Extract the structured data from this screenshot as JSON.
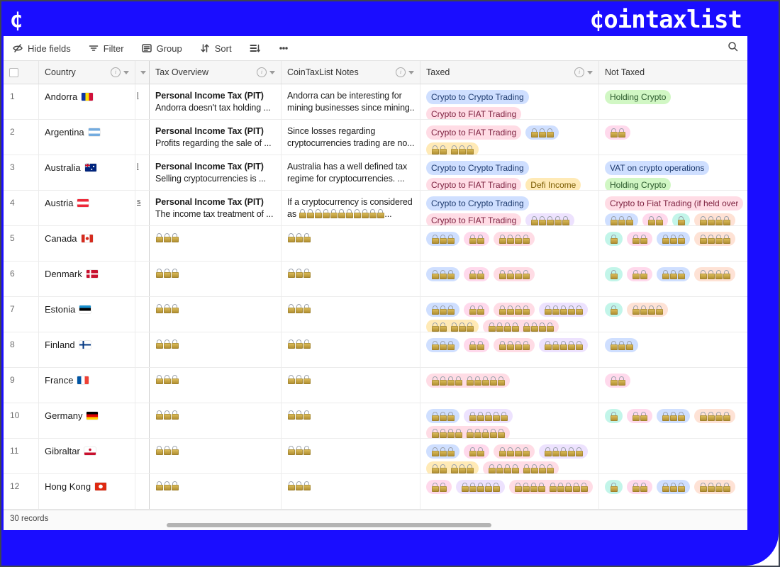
{
  "brand": {
    "logo_glyph": "¢",
    "wordmark": "¢ointaxlist"
  },
  "toolbar": {
    "items": [
      {
        "id": "hide-fields",
        "label": "Hide fields",
        "icon": "eye-slash-icon"
      },
      {
        "id": "filter",
        "label": "Filter",
        "icon": "funnel-icon"
      },
      {
        "id": "group",
        "label": "Group",
        "icon": "grouped-list-icon"
      },
      {
        "id": "sort",
        "label": "Sort",
        "icon": "sort-arrows-icon"
      },
      {
        "id": "row-height",
        "label": "",
        "icon": "row-height-icon"
      },
      {
        "id": "more",
        "label": "",
        "icon": "ellipsis-icon"
      }
    ],
    "search_icon": "magnifier-icon"
  },
  "colors": {
    "frame_blue": "#1a0dff",
    "pill_bg": {
      "blue": "#cfdfff",
      "red": "#ffdce5",
      "pink": "#ffd9ec",
      "green": "#d1f7c4",
      "yellow": "#ffeab6",
      "purple": "#ede2fe",
      "teal": "#c2f5e9",
      "orange": "#fee2d5"
    },
    "pill_text": {
      "blue": "#1d3a6e",
      "red": "#7e2240",
      "pink": "#8a2f5c",
      "green": "#2c5b2d",
      "yellow": "#7a5b00",
      "purple": "#5a2f8f",
      "teal": "#0d6a5f",
      "orange": "#8a3e1c"
    }
  },
  "table": {
    "columns": [
      {
        "key": "country",
        "label": "Country",
        "has_info": true,
        "has_caret": true
      },
      {
        "key": "hidden",
        "label": "",
        "has_info": false,
        "has_caret": true
      },
      {
        "key": "tax_overview",
        "label": "Tax Overview",
        "has_info": true,
        "has_caret": true
      },
      {
        "key": "notes",
        "label": "CoinTaxList Notes",
        "has_info": true,
        "has_caret": true
      },
      {
        "key": "taxed",
        "label": "Taxed",
        "has_info": true,
        "has_caret": true
      },
      {
        "key": "not_taxed",
        "label": "Not Taxed",
        "has_info": false,
        "has_caret": false
      }
    ],
    "rows": [
      {
        "num": "1",
        "country": "Andorra",
        "flag": "ad",
        "link_fragment": "l",
        "overview": {
          "title": "Personal Income Tax (PIT)",
          "sub": "Andorra doesn't tax holding ..."
        },
        "notes": {
          "lines": [
            "Andorra can be interesting for",
            "mining businesses since mining..."
          ]
        },
        "taxed": [
          {
            "text": "Crypto to Crypto Trading",
            "color": "blue"
          },
          {
            "text": "Crypto to FIAT Trading",
            "color": "red"
          }
        ],
        "not_taxed": [
          {
            "text": "Holding Crypto",
            "color": "green"
          }
        ]
      },
      {
        "num": "2",
        "country": "Argentina",
        "flag": "ar",
        "link_fragment": "",
        "overview": {
          "title": "Personal Income Tax (PIT)",
          "sub": "Profits regarding the sale of ..."
        },
        "notes": {
          "lines": [
            "Since losses regarding",
            "cryptocurrencies trading are no..."
          ]
        },
        "taxed": [
          {
            "text": "Crypto to FIAT Trading",
            "color": "red"
          },
          {
            "locks": [
              3
            ],
            "color": "blue"
          },
          {
            "locks": [
              2,
              3
            ],
            "color": "yellow"
          }
        ],
        "not_taxed": [
          {
            "locks": [
              2
            ],
            "color": "pink"
          }
        ]
      },
      {
        "num": "3",
        "country": "Australia",
        "flag": "au",
        "link_fragment": "l",
        "overview": {
          "title": "Personal Income Tax (PIT)",
          "sub": "Selling cryptocurrencies is ..."
        },
        "notes": {
          "lines": [
            "Australia has a well defined tax",
            "regime for cryptocurrencies. ..."
          ]
        },
        "taxed": [
          {
            "text": "Crypto to Crypto Trading",
            "color": "blue"
          },
          {
            "text": "Crypto to FIAT Trading",
            "color": "red"
          },
          {
            "text": "Defi Income",
            "color": "yellow"
          }
        ],
        "not_taxed": [
          {
            "text": "VAT on crypto operations",
            "color": "blue"
          },
          {
            "text": "Holding Crypto",
            "color": "green"
          }
        ]
      },
      {
        "num": "4",
        "country": "Austria",
        "flag": "at",
        "link_fragment": "s",
        "overview": {
          "title": "Personal Income Tax (PIT)",
          "sub": "The income tax treatment of ..."
        },
        "notes": {
          "lines": [
            "If a cryptocurrency is considered"
          ],
          "locks_line": {
            "prefix": "as",
            "count": 11,
            "suffix": "..."
          }
        },
        "taxed": [
          {
            "text": "Crypto to Crypto Trading",
            "color": "blue"
          },
          {
            "text": "Crypto to FIAT Trading",
            "color": "red"
          },
          {
            "locks": [
              5
            ],
            "color": "purple"
          }
        ],
        "not_taxed": [
          {
            "text": "Crypto to Fiat Trading (if held over",
            "color": "red"
          },
          {
            "locks": [
              3
            ],
            "color": "blue"
          },
          {
            "locks": [
              2
            ],
            "color": "pink"
          },
          {
            "locks": [
              1
            ],
            "color": "teal"
          },
          {
            "locks": [
              4
            ],
            "color": "orange"
          }
        ]
      },
      {
        "num": "5",
        "country": "Canada",
        "flag": "ca",
        "link_fragment": "",
        "overview": {
          "locks": 3
        },
        "notes": {
          "locks": 3
        },
        "taxed": [
          {
            "locks": [
              3
            ],
            "color": "blue"
          },
          {
            "locks": [
              2
            ],
            "color": "pink"
          },
          {
            "locks": [
              4
            ],
            "color": "red"
          }
        ],
        "not_taxed": [
          {
            "locks": [
              1
            ],
            "color": "teal"
          },
          {
            "locks": [
              2
            ],
            "color": "pink"
          },
          {
            "locks": [
              3
            ],
            "color": "blue"
          },
          {
            "locks": [
              4
            ],
            "color": "orange"
          }
        ]
      },
      {
        "num": "6",
        "country": "Denmark",
        "flag": "dk",
        "link_fragment": "",
        "overview": {
          "locks": 3
        },
        "notes": {
          "locks": 3
        },
        "taxed": [
          {
            "locks": [
              3
            ],
            "color": "blue"
          },
          {
            "locks": [
              2
            ],
            "color": "pink"
          },
          {
            "locks": [
              4
            ],
            "color": "red"
          }
        ],
        "not_taxed": [
          {
            "locks": [
              1
            ],
            "color": "teal"
          },
          {
            "locks": [
              2
            ],
            "color": "pink"
          },
          {
            "locks": [
              3
            ],
            "color": "blue"
          },
          {
            "locks": [
              4
            ],
            "color": "orange"
          }
        ]
      },
      {
        "num": "7",
        "country": "Estonia",
        "flag": "ee",
        "link_fragment": "",
        "overview": {
          "locks": 3
        },
        "notes": {
          "locks": 3
        },
        "taxed": [
          {
            "locks": [
              3
            ],
            "color": "blue"
          },
          {
            "locks": [
              2
            ],
            "color": "pink"
          },
          {
            "locks": [
              4
            ],
            "color": "red"
          },
          {
            "locks": [
              5
            ],
            "color": "purple"
          },
          {
            "locks": [
              2,
              3
            ],
            "color": "yellow"
          },
          {
            "locks": [
              4,
              4
            ],
            "color": "red"
          }
        ],
        "not_taxed": [
          {
            "locks": [
              1
            ],
            "color": "teal"
          },
          {
            "locks": [
              4
            ],
            "color": "orange"
          }
        ]
      },
      {
        "num": "8",
        "country": "Finland",
        "flag": "fi",
        "link_fragment": "",
        "overview": {
          "locks": 3
        },
        "notes": {
          "locks": 3
        },
        "taxed": [
          {
            "locks": [
              3
            ],
            "color": "blue"
          },
          {
            "locks": [
              2
            ],
            "color": "pink"
          },
          {
            "locks": [
              4
            ],
            "color": "red"
          },
          {
            "locks": [
              5
            ],
            "color": "purple"
          }
        ],
        "not_taxed": [
          {
            "locks": [
              3
            ],
            "color": "blue"
          }
        ]
      },
      {
        "num": "9",
        "country": "France",
        "flag": "fr",
        "link_fragment": "",
        "overview": {
          "locks": 3
        },
        "notes": {
          "locks": 3
        },
        "taxed": [
          {
            "locks": [
              4,
              5
            ],
            "color": "red"
          }
        ],
        "not_taxed": [
          {
            "locks": [
              2
            ],
            "color": "pink"
          }
        ]
      },
      {
        "num": "10",
        "country": "Germany",
        "flag": "de",
        "link_fragment": "",
        "overview": {
          "locks": 3
        },
        "notes": {
          "locks": 3
        },
        "taxed": [
          {
            "locks": [
              3
            ],
            "color": "blue"
          },
          {
            "locks": [
              5
            ],
            "color": "purple"
          },
          {
            "locks": [
              4,
              5
            ],
            "color": "red"
          }
        ],
        "not_taxed": [
          {
            "locks": [
              1
            ],
            "color": "teal"
          },
          {
            "locks": [
              2
            ],
            "color": "pink"
          },
          {
            "locks": [
              3
            ],
            "color": "blue"
          },
          {
            "locks": [
              4
            ],
            "color": "orange"
          }
        ]
      },
      {
        "num": "11",
        "country": "Gibraltar",
        "flag": "gi",
        "link_fragment": "",
        "overview": {
          "locks": 3
        },
        "notes": {
          "locks": 3
        },
        "taxed": [
          {
            "locks": [
              3
            ],
            "color": "blue"
          },
          {
            "locks": [
              2
            ],
            "color": "pink"
          },
          {
            "locks": [
              4
            ],
            "color": "red"
          },
          {
            "locks": [
              5
            ],
            "color": "purple"
          },
          {
            "locks": [
              2,
              3
            ],
            "color": "yellow"
          },
          {
            "locks": [
              4,
              4
            ],
            "color": "red"
          }
        ],
        "not_taxed": []
      },
      {
        "num": "12",
        "country": "Hong Kong",
        "flag": "hk",
        "link_fragment": "",
        "overview": {
          "locks": 3
        },
        "notes": {
          "locks": 3
        },
        "taxed": [
          {
            "locks": [
              2
            ],
            "color": "pink"
          },
          {
            "locks": [
              5
            ],
            "color": "purple"
          },
          {
            "locks": [
              4,
              5
            ],
            "color": "red"
          }
        ],
        "not_taxed": [
          {
            "locks": [
              1
            ],
            "color": "teal"
          },
          {
            "locks": [
              2
            ],
            "color": "pink"
          },
          {
            "locks": [
              3
            ],
            "color": "blue"
          },
          {
            "locks": [
              4
            ],
            "color": "orange"
          }
        ]
      }
    ],
    "footer": {
      "record_count": "30 records"
    }
  }
}
